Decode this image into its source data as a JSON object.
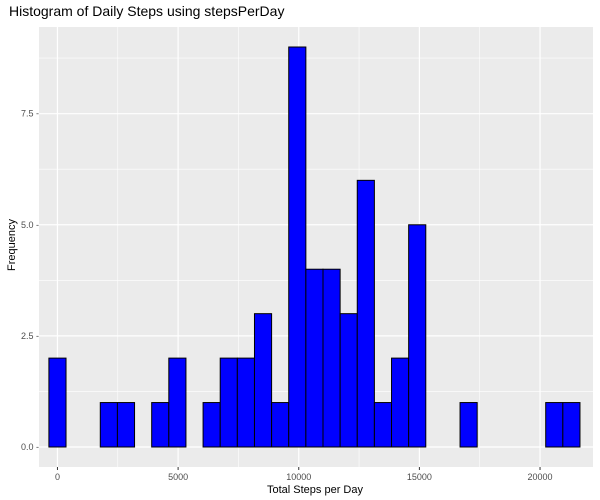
{
  "chart_data": {
    "type": "bar",
    "title": "Histogram of Daily Steps using stepsPerDay",
    "xlabel": "Total Steps per Day",
    "ylabel": "Frequency",
    "xlim": [
      -765,
      22195
    ],
    "ylim": [
      -0.45,
      9.45
    ],
    "x_ticks": [
      0,
      5000,
      10000,
      15000,
      20000
    ],
    "x_tick_labels": [
      "0",
      "5000",
      "10000",
      "15000",
      "20000"
    ],
    "y_ticks": [
      0,
      2.5,
      5,
      7.5
    ],
    "y_tick_labels": [
      "0.0 -",
      "2.5 -",
      "5.0 -",
      "7.5 -"
    ],
    "bin_width": 710,
    "bin_centers": [
      0,
      710,
      1420,
      2130,
      2840,
      3550,
      4260,
      4970,
      5680,
      6390,
      7100,
      7810,
      8520,
      9230,
      9940,
      10650,
      11360,
      12070,
      12780,
      13490,
      14200,
      14910,
      15620,
      16330,
      17040,
      17750,
      18460,
      19170,
      19880,
      20590,
      21300
    ],
    "values": [
      2,
      0,
      0,
      1,
      1,
      0,
      1,
      2,
      0,
      1,
      2,
      2,
      3,
      1,
      9,
      4,
      4,
      3,
      6,
      1,
      2,
      5,
      0,
      0,
      1,
      0,
      0,
      0,
      0,
      1,
      1
    ],
    "bar_fill": "#0000ff",
    "bar_outline": "#000000",
    "panel_background": "#ebebeb",
    "grid_color": "#ffffff",
    "grid": true,
    "legend": "none"
  }
}
